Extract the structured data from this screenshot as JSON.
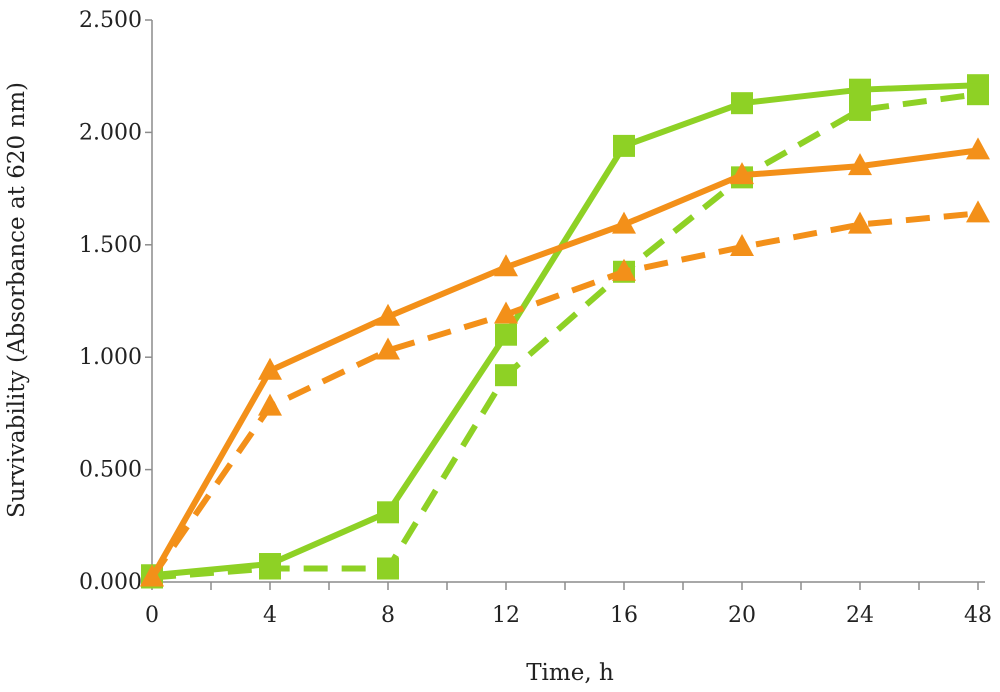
{
  "chart_data": {
    "type": "line",
    "title": "",
    "xlabel": "Time, h",
    "ylabel": "Survivability (Absorbance at 620 nm)",
    "categories": [
      "0",
      "4",
      "8",
      "12",
      "16",
      "20",
      "24",
      "48"
    ],
    "yticks": [
      "0.000",
      "0.500",
      "1.000",
      "1.500",
      "2.000",
      "2.500"
    ],
    "ylim": [
      0,
      2.5
    ],
    "grid": false,
    "legend": "none",
    "series": [
      {
        "color": "#8ed125",
        "marker": "square",
        "dash": "solid",
        "values": [
          0.03,
          0.08,
          0.31,
          1.1,
          1.94,
          2.13,
          2.19,
          2.21
        ]
      },
      {
        "color": "#8ed125",
        "marker": "square",
        "dash": "dashed",
        "values": [
          0.02,
          0.06,
          0.06,
          0.92,
          1.38,
          1.8,
          2.1,
          2.17
        ]
      },
      {
        "color": "#f39019",
        "marker": "triangle",
        "dash": "solid",
        "values": [
          0.02,
          0.94,
          1.18,
          1.4,
          1.59,
          1.81,
          1.85,
          1.92
        ]
      },
      {
        "color": "#f39019",
        "marker": "triangle",
        "dash": "dashed",
        "values": [
          0.02,
          0.78,
          1.03,
          1.19,
          1.38,
          1.49,
          1.59,
          1.64
        ]
      }
    ]
  }
}
